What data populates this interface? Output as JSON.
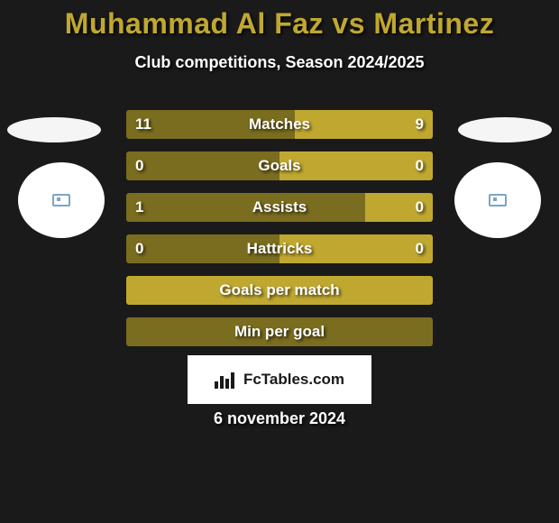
{
  "header": {
    "title": "Muhammad Al Faz vs Martinez",
    "title_color": "#c0a830",
    "title_fontsize": 32,
    "subtitle": "Club competitions, Season 2024/2025",
    "subtitle_color": "#ffffff",
    "subtitle_fontsize": 18
  },
  "background_color": "#1a1a1a",
  "bar_colors": {
    "dark_olive": "#7a6d1f",
    "bright_olive": "#c0a830"
  },
  "stats": [
    {
      "label": "Matches",
      "left_value": "11",
      "right_value": "9",
      "left_pct": 55,
      "right_pct": 45,
      "left_color": "#7a6d1f",
      "right_color": "#c0a830"
    },
    {
      "label": "Goals",
      "left_value": "0",
      "right_value": "0",
      "left_pct": 50,
      "right_pct": 50,
      "left_color": "#7a6d1f",
      "right_color": "#c0a830"
    },
    {
      "label": "Assists",
      "left_value": "1",
      "right_value": "0",
      "left_pct": 78,
      "right_pct": 22,
      "left_color": "#7a6d1f",
      "right_color": "#c0a830"
    },
    {
      "label": "Hattricks",
      "left_value": "0",
      "right_value": "0",
      "left_pct": 50,
      "right_pct": 50,
      "left_color": "#7a6d1f",
      "right_color": "#c0a830"
    },
    {
      "label": "Goals per match",
      "left_value": "",
      "right_value": "",
      "left_pct": 0,
      "right_pct": 100,
      "left_color": "#7a6d1f",
      "right_color": "#c0a830"
    },
    {
      "label": "Min per goal",
      "left_value": "",
      "right_value": "",
      "left_pct": 100,
      "right_pct": 0,
      "left_color": "#7a6d1f",
      "right_color": "#c0a830"
    }
  ],
  "footer": {
    "brand": "FcTables.com",
    "box_bg": "#ffffff",
    "text_color": "#1a1a1a"
  },
  "date": "6 november 2024",
  "badge_bg": "#f5f5f5",
  "circle_bg": "#ffffff"
}
